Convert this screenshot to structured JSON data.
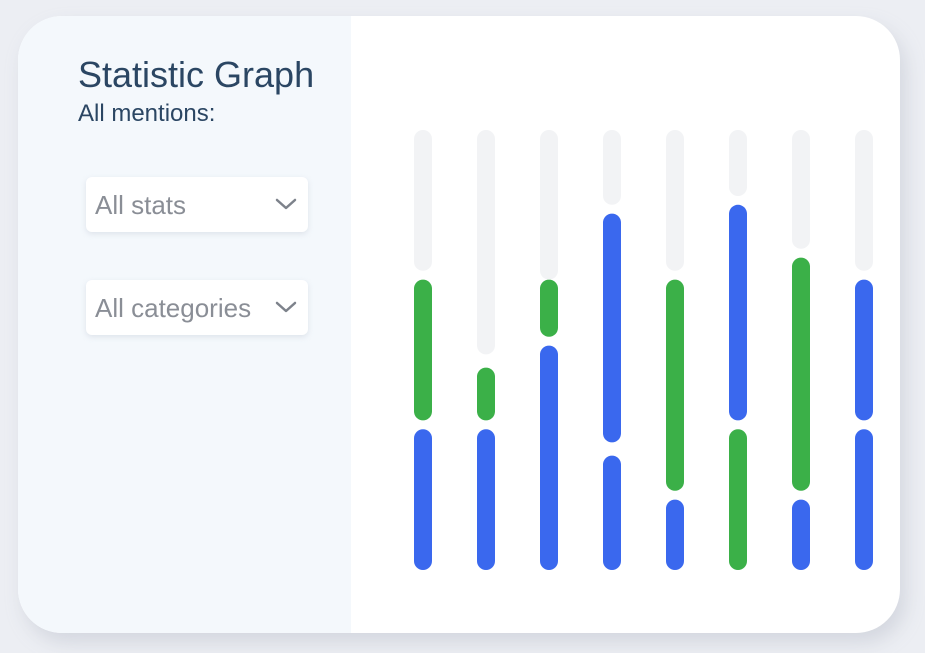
{
  "panel": {
    "title": "Statistic Graph",
    "subtitle": "All mentions:"
  },
  "filters": {
    "stats_dropdown": {
      "selected": "All stats",
      "icon": "chevron-down-icon"
    },
    "categories_dropdown": {
      "selected": "All categories",
      "icon": "chevron-down-icon"
    }
  },
  "colors": {
    "track": "#f2f3f5",
    "blue": "#3a68ee",
    "green": "#3bb048",
    "left_panel_bg": "#f4f8fc",
    "text_dark": "#2b4663",
    "text_muted": "#8a8e96"
  },
  "chart_data": {
    "type": "bar",
    "scale_note": "stacked segments per column, values as fraction of column height (bottom = 0, top = 1)",
    "columns": [
      {
        "segments": [
          {
            "series": "blue",
            "from": 0.0,
            "to": 0.32
          },
          {
            "series": "green",
            "from": 0.34,
            "to": 0.66
          },
          {
            "series": "track",
            "from": 0.68,
            "to": 1.0
          }
        ]
      },
      {
        "segments": [
          {
            "series": "blue",
            "from": 0.0,
            "to": 0.32
          },
          {
            "series": "green",
            "from": 0.34,
            "to": 0.46
          },
          {
            "series": "track",
            "from": 0.49,
            "to": 1.0
          }
        ]
      },
      {
        "segments": [
          {
            "series": "blue",
            "from": 0.0,
            "to": 0.51
          },
          {
            "series": "green",
            "from": 0.53,
            "to": 0.66
          },
          {
            "series": "track",
            "from": 0.66,
            "to": 1.0
          }
        ]
      },
      {
        "segments": [
          {
            "series": "blue",
            "from": 0.0,
            "to": 0.26
          },
          {
            "series": "blue",
            "from": 0.29,
            "to": 0.81
          },
          {
            "series": "track",
            "from": 0.83,
            "to": 1.0
          }
        ]
      },
      {
        "segments": [
          {
            "series": "blue",
            "from": 0.0,
            "to": 0.16
          },
          {
            "series": "green",
            "from": 0.18,
            "to": 0.66
          },
          {
            "series": "track",
            "from": 0.68,
            "to": 1.0
          }
        ]
      },
      {
        "segments": [
          {
            "series": "green",
            "from": 0.0,
            "to": 0.32
          },
          {
            "series": "blue",
            "from": 0.34,
            "to": 0.83
          },
          {
            "series": "track",
            "from": 0.85,
            "to": 1.0
          }
        ]
      },
      {
        "segments": [
          {
            "series": "blue",
            "from": 0.0,
            "to": 0.16
          },
          {
            "series": "green",
            "from": 0.18,
            "to": 0.71
          },
          {
            "series": "track",
            "from": 0.73,
            "to": 1.0
          }
        ]
      },
      {
        "segments": [
          {
            "series": "blue",
            "from": 0.0,
            "to": 0.32
          },
          {
            "series": "blue",
            "from": 0.34,
            "to": 0.66
          },
          {
            "series": "track",
            "from": 0.68,
            "to": 1.0
          }
        ]
      }
    ]
  }
}
